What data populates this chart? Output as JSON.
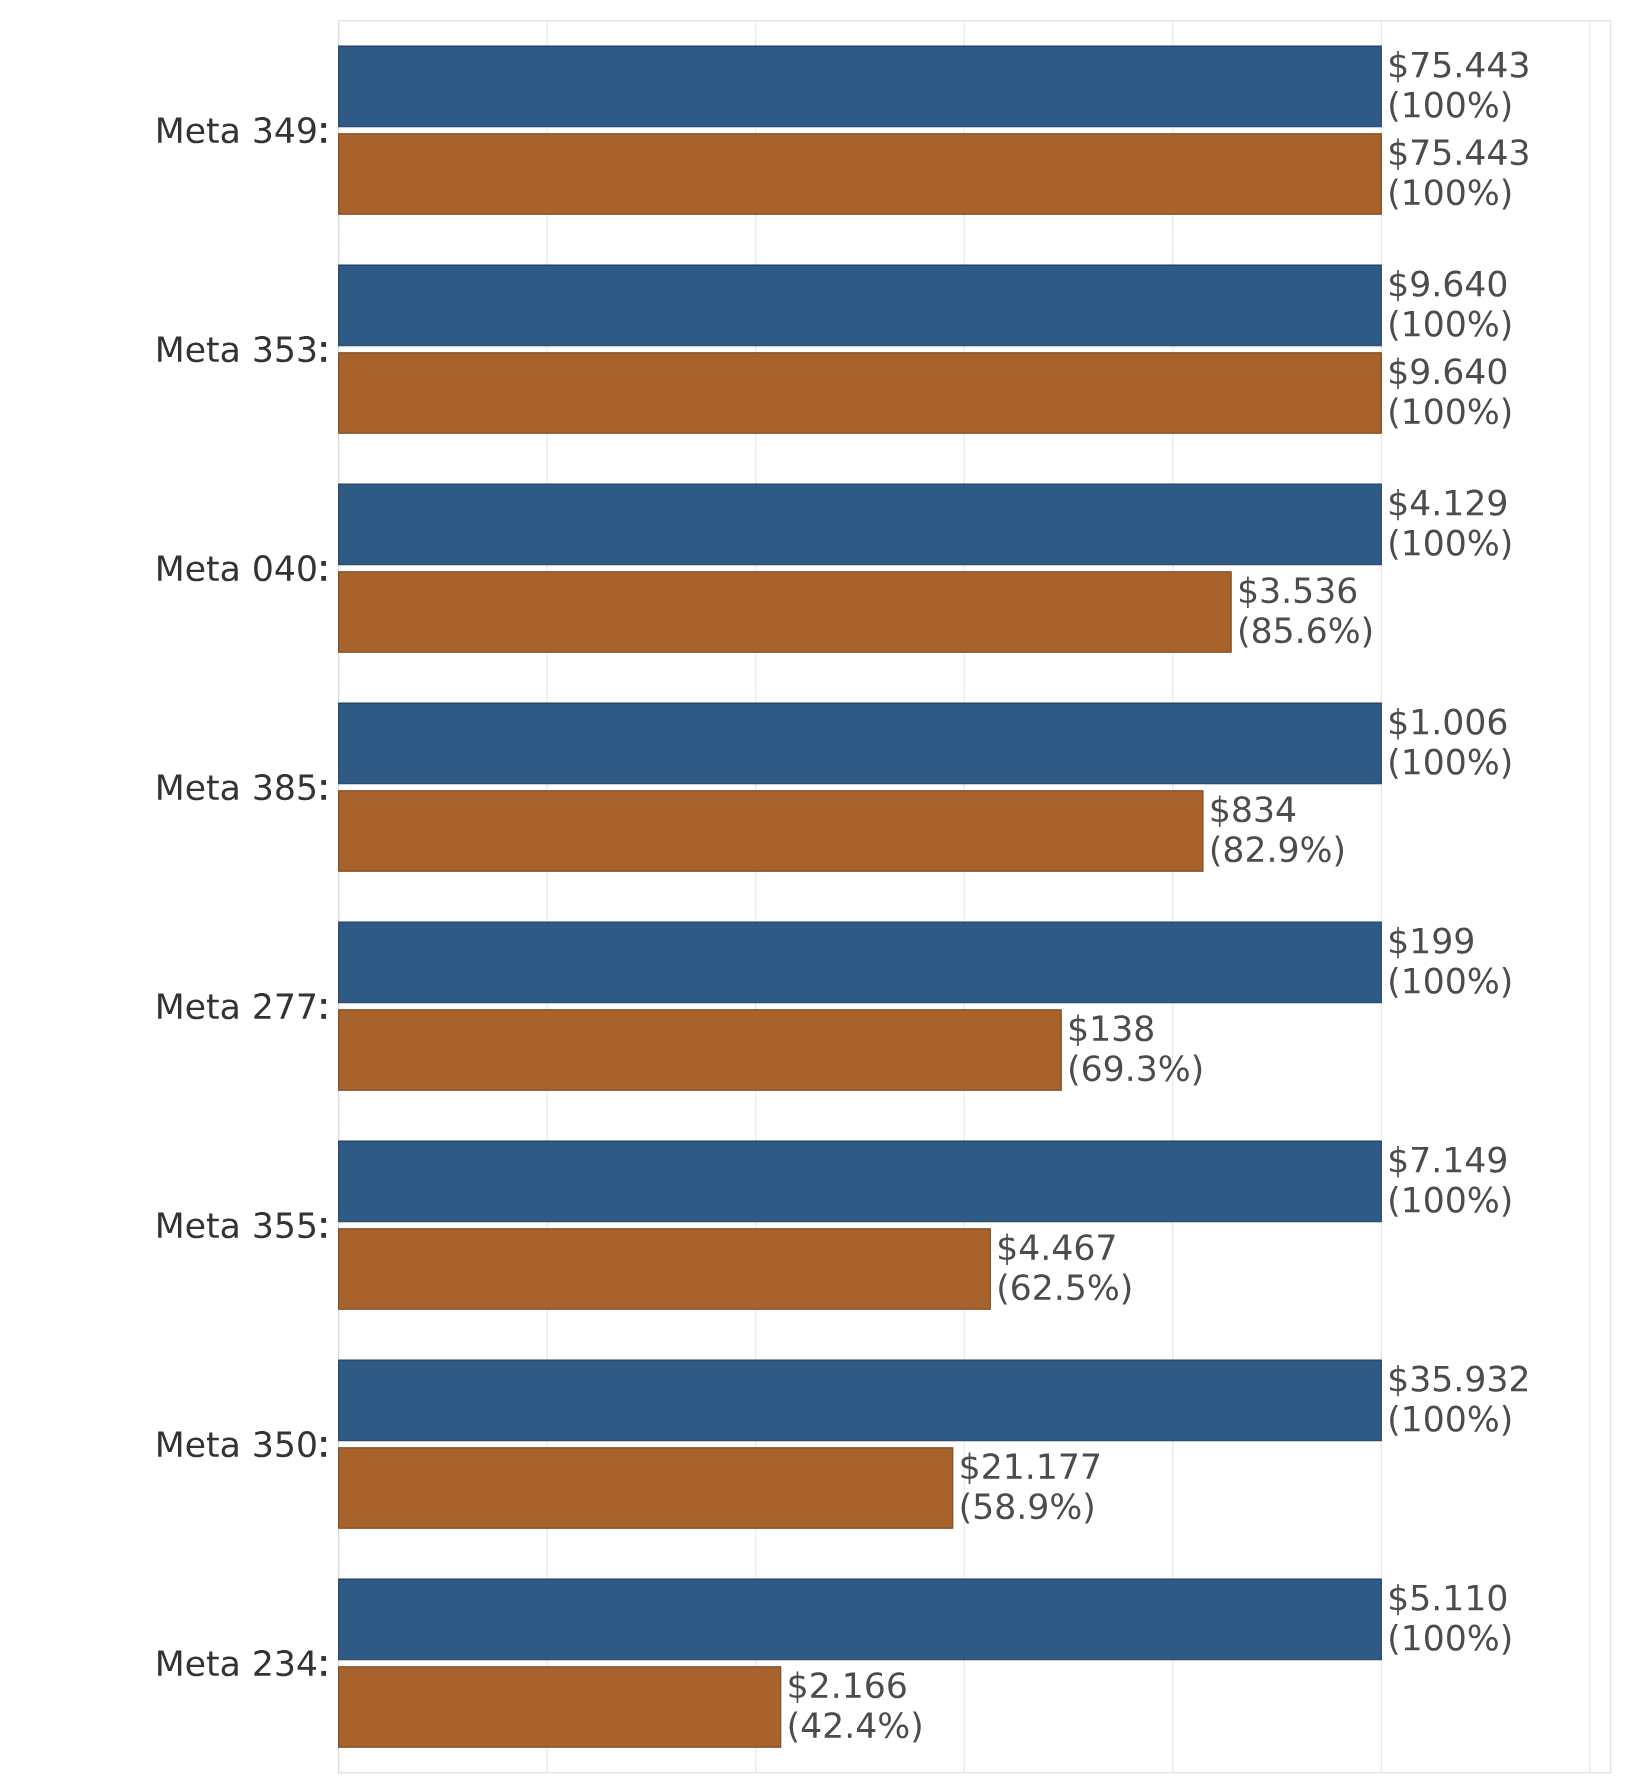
{
  "chart_data": {
    "type": "bar",
    "orientation": "horizontal",
    "categories": [
      "Meta 349",
      "Meta 353",
      "Meta 040",
      "Meta 385",
      "Meta 277",
      "Meta 355",
      "Meta 350",
      "Meta 234"
    ],
    "series": [
      {
        "color": "#2f5a86",
        "values": [
          100,
          100,
          100,
          100,
          100,
          100,
          100,
          100
        ],
        "value_labels": [
          "$75.443 (100%)",
          "$9.640 (100%)",
          "$4.129 (100%)",
          "$1.006 (100%)",
          "$199 (100%)",
          "$7.149 (100%)",
          "$35.932 (100%)",
          "$5.110 (100%)"
        ]
      },
      {
        "color": "#a8622b",
        "values": [
          100,
          100,
          85.6,
          82.9,
          69.3,
          62.5,
          58.9,
          42.4
        ],
        "value_labels": [
          "$75.443 (100%)",
          "$9.640 (100%)",
          "$3.536 (85.6%)",
          "$834 (82.9%)",
          "$138 (69.3%)",
          "$4.467 (62.5%)",
          "$21.177 (58.9%)",
          "$2.166 (42.4%)"
        ]
      }
    ],
    "xlim": [
      0,
      122
    ],
    "xticks": [
      {
        "value": 0,
        "label": null
      },
      {
        "value": 20,
        "label": null
      },
      {
        "value": 40,
        "label": null
      },
      {
        "value": 60,
        "label": null
      },
      {
        "value": 80,
        "label": null
      },
      {
        "value": 100,
        "label": null
      },
      {
        "value": 120,
        "label": null
      }
    ],
    "grid": "x",
    "tick_labels": "y"
  }
}
